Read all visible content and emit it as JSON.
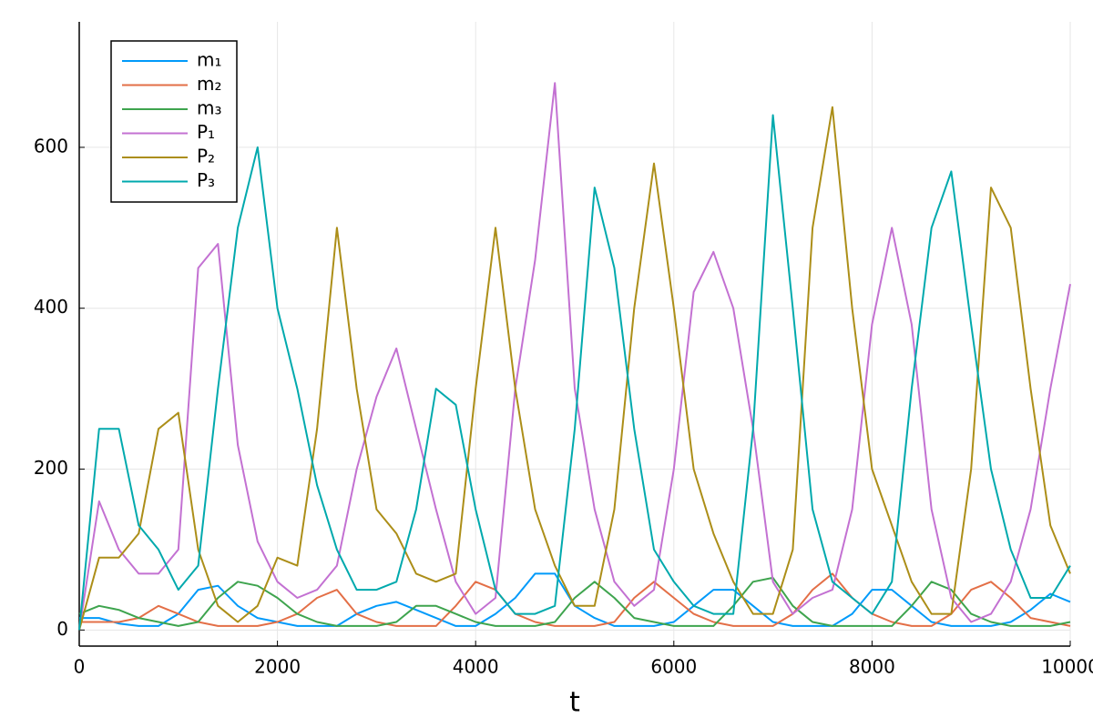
{
  "chart_data": {
    "type": "line",
    "xlabel": "t",
    "x": [
      0,
      200,
      400,
      600,
      800,
      1000,
      1200,
      1400,
      1600,
      1800,
      2000,
      2200,
      2400,
      2600,
      2800,
      3000,
      3200,
      3400,
      3600,
      3800,
      4000,
      4200,
      4400,
      4600,
      4800,
      5000,
      5200,
      5400,
      5600,
      5800,
      6000,
      6200,
      6400,
      6600,
      6800,
      7000,
      7200,
      7400,
      7600,
      7800,
      8000,
      8200,
      8400,
      8600,
      8800,
      9000,
      9200,
      9400,
      9600,
      9800,
      10000
    ],
    "series": [
      {
        "name": "m₁",
        "color": "#009afa",
        "values": [
          15,
          15,
          8,
          5,
          5,
          20,
          50,
          55,
          30,
          15,
          10,
          5,
          5,
          5,
          20,
          30,
          35,
          25,
          15,
          5,
          5,
          20,
          40,
          70,
          70,
          30,
          15,
          5,
          5,
          5,
          10,
          30,
          50,
          50,
          30,
          10,
          5,
          5,
          5,
          20,
          50,
          50,
          30,
          10,
          5,
          5,
          5,
          10,
          25,
          45,
          35
        ]
      },
      {
        "name": "m₂",
        "color": "#e36f47",
        "values": [
          10,
          10,
          10,
          15,
          30,
          20,
          10,
          5,
          5,
          5,
          10,
          20,
          40,
          50,
          20,
          10,
          5,
          5,
          5,
          30,
          60,
          50,
          20,
          10,
          5,
          5,
          5,
          10,
          40,
          60,
          40,
          20,
          10,
          5,
          5,
          5,
          20,
          50,
          70,
          40,
          20,
          10,
          5,
          5,
          20,
          50,
          60,
          40,
          15,
          10,
          5
        ]
      },
      {
        "name": "m₃",
        "color": "#3ea44e",
        "values": [
          20,
          30,
          25,
          15,
          10,
          5,
          10,
          40,
          60,
          55,
          40,
          20,
          10,
          5,
          5,
          5,
          10,
          30,
          30,
          20,
          10,
          5,
          5,
          5,
          10,
          40,
          60,
          40,
          15,
          10,
          5,
          5,
          5,
          30,
          60,
          65,
          30,
          10,
          5,
          5,
          5,
          5,
          30,
          60,
          50,
          20,
          10,
          5,
          5,
          5,
          10
        ]
      },
      {
        "name": "P₁",
        "color": "#c371d2",
        "values": [
          0,
          160,
          100,
          70,
          70,
          100,
          450,
          480,
          230,
          110,
          60,
          40,
          50,
          80,
          200,
          290,
          350,
          250,
          150,
          60,
          20,
          40,
          300,
          460,
          680,
          300,
          150,
          60,
          30,
          50,
          200,
          420,
          470,
          400,
          250,
          60,
          20,
          40,
          50,
          150,
          380,
          500,
          380,
          150,
          40,
          10,
          20,
          60,
          150,
          300,
          430
        ]
      },
      {
        "name": "P₂",
        "color": "#ac8e18",
        "values": [
          0,
          90,
          90,
          120,
          250,
          270,
          100,
          30,
          10,
          30,
          90,
          80,
          250,
          500,
          300,
          150,
          120,
          70,
          60,
          70,
          300,
          500,
          300,
          150,
          80,
          30,
          30,
          150,
          400,
          580,
          400,
          200,
          120,
          60,
          20,
          20,
          100,
          500,
          650,
          400,
          200,
          130,
          60,
          20,
          20,
          200,
          550,
          500,
          300,
          130,
          70
        ]
      },
      {
        "name": "P₃",
        "color": "#00a9ad",
        "values": [
          0,
          250,
          250,
          130,
          100,
          50,
          80,
          300,
          500,
          600,
          400,
          300,
          180,
          100,
          50,
          50,
          60,
          150,
          300,
          280,
          150,
          50,
          20,
          20,
          30,
          250,
          550,
          450,
          250,
          100,
          60,
          30,
          20,
          20,
          250,
          640,
          400,
          150,
          60,
          40,
          20,
          60,
          300,
          500,
          570,
          380,
          200,
          100,
          40,
          40,
          80
        ]
      }
    ],
    "xlim": [
      0,
      10000
    ],
    "ylim": [
      -20,
      756
    ],
    "xticks": [
      0,
      2000,
      4000,
      6000,
      8000,
      10000
    ],
    "yticks": [
      0,
      200,
      400,
      600
    ],
    "grid": true,
    "legend": "top-left"
  }
}
